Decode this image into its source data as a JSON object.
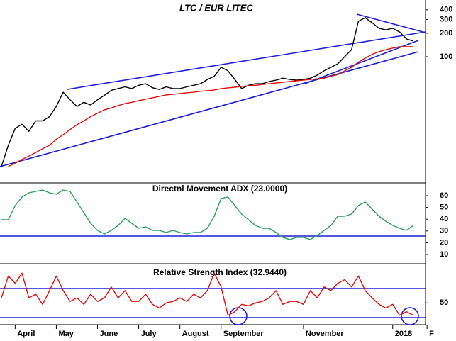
{
  "chart_data": [
    {
      "type": "line",
      "title": "LTC / EUR LITEC",
      "log_scale": true,
      "ylim": [
        2.4,
        534
      ],
      "yticks": [
        400,
        300,
        200,
        100
      ],
      "series": [
        {
          "color": "#000000",
          "values": [
            3.9,
            7.3,
            12,
            13.6,
            11,
            15,
            15,
            17,
            23,
            35,
            28,
            23,
            26,
            24,
            28,
            32,
            37,
            39,
            41,
            39,
            43,
            45,
            40,
            38,
            41,
            39,
            39,
            41,
            43,
            45,
            51,
            56,
            73,
            66,
            51,
            39,
            43,
            45,
            45,
            48,
            50,
            53,
            51,
            50,
            51,
            53,
            58,
            66,
            73,
            81,
            100,
            123,
            285,
            316,
            273,
            231,
            221,
            231,
            208,
            169,
            159,
            null,
            null
          ]
        },
        {
          "color": "#e01010",
          "values": [
            null,
            3.9,
            4.3,
            4.8,
            5.3,
            5.9,
            6.6,
            7.3,
            8.7,
            10,
            11.6,
            13.4,
            15,
            17,
            18.8,
            20.8,
            22,
            23.6,
            25,
            26,
            27.3,
            28.5,
            29.7,
            31,
            32.3,
            33,
            33.7,
            34.4,
            35,
            36,
            36.6,
            37.4,
            39,
            39.8,
            40.6,
            41.5,
            42.4,
            43,
            44,
            45,
            46,
            47,
            48,
            49,
            50,
            51,
            52,
            53,
            56,
            59,
            66,
            73,
            85,
            96,
            107,
            116,
            123,
            129,
            134,
            134,
            134,
            null,
            null
          ]
        }
      ]
    },
    {
      "type": "line",
      "title": "Directnl Movement ADX (23.0000)",
      "ylim": [
        2.2,
        70.8
      ],
      "yticks": [
        60,
        50,
        40,
        30,
        20,
        10
      ],
      "series": [
        {
          "color": "#2e9e5b",
          "values": [
            39.5,
            39.5,
            51.6,
            58.8,
            62.4,
            63.6,
            64.8,
            62.4,
            61.2,
            64.8,
            63.6,
            54.6,
            45.5,
            36.5,
            30.5,
            27.5,
            30.5,
            34.7,
            40.7,
            36.5,
            32.3,
            33.5,
            30.5,
            30.5,
            28.7,
            30.5,
            28.7,
            27.5,
            28.7,
            28.7,
            32.3,
            42.5,
            57.6,
            58.8,
            51.6,
            44.3,
            39.5,
            34.7,
            32.3,
            32.3,
            28.7,
            24.5,
            22.7,
            24.5,
            24.5,
            22.7,
            26.3,
            30.5,
            34.7,
            42.5,
            42.5,
            44.3,
            51.6,
            54.6,
            48.6,
            42.5,
            38.3,
            34.7,
            32.3,
            30.5,
            34.7,
            null,
            null
          ]
        }
      ]
    },
    {
      "type": "line",
      "title": "Relative Strength Index (32.9440)",
      "ylim": [
        20,
        104
      ],
      "yticks": [
        50
      ],
      "categories": [
        null,
        null,
        "April",
        null,
        null,
        null,
        null,
        null,
        "May",
        null,
        null,
        null,
        null,
        null,
        "June",
        null,
        null,
        null,
        null,
        null,
        "July",
        null,
        null,
        null,
        null,
        null,
        "August",
        null,
        null,
        null,
        null,
        null,
        "September",
        null,
        null,
        null,
        null,
        null,
        null,
        null,
        null,
        null,
        null,
        null,
        "November",
        null,
        null,
        null,
        null,
        null,
        null,
        null,
        null,
        null,
        null,
        null,
        null,
        "2018",
        null,
        null,
        null,
        null,
        "F"
      ],
      "series": [
        {
          "color": "#e01010",
          "values": [
            57,
            87,
            77,
            91,
            57,
            62,
            48,
            67,
            87,
            67,
            52,
            57,
            48,
            62,
            52,
            57,
            72,
            57,
            67,
            52,
            52,
            62,
            48,
            43,
            50,
            52,
            57,
            52,
            62,
            57,
            67,
            91,
            72,
            33,
            38,
            48,
            46,
            50,
            52,
            57,
            67,
            48,
            52,
            52,
            48,
            67,
            57,
            72,
            67,
            77,
            82,
            72,
            87,
            67,
            57,
            48,
            43,
            48,
            33,
            38,
            33,
            null,
            null
          ]
        }
      ]
    }
  ]
}
